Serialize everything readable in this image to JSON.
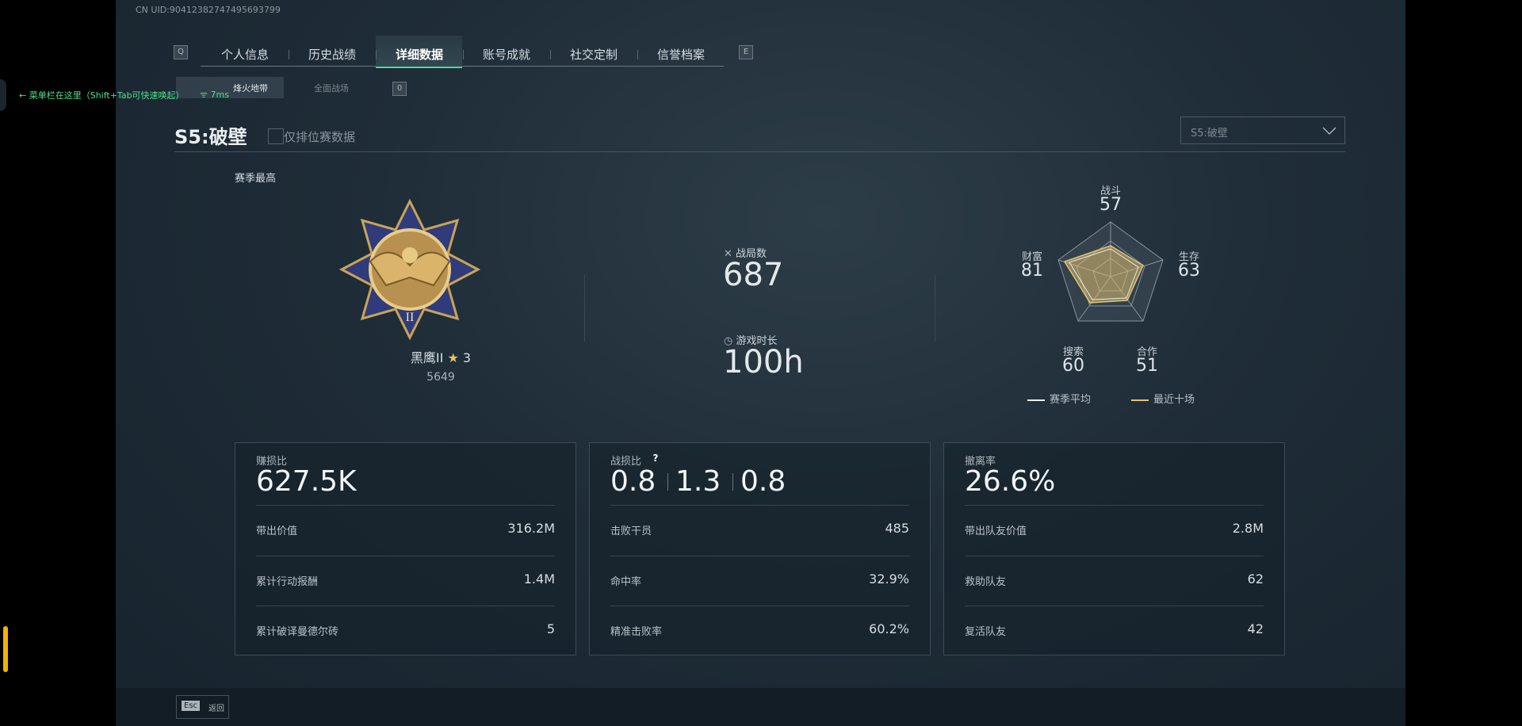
{
  "header": {
    "uid": "CN UID:90412382747495693799",
    "tabs": [
      "个人信息",
      "历史战绩",
      "详细数据",
      "账号成就",
      "社交定制",
      "信誉档案"
    ],
    "key_left": "Q",
    "key_right": "E",
    "subtabs": [
      "烽火地带",
      "全面战场"
    ],
    "sub_key": "0"
  },
  "overlay": {
    "hint": "菜单栏在这里（Shift+Tab可快速唤起）",
    "ping": "7ms"
  },
  "season": {
    "title": "S5:破壁",
    "ranked_only": "仅排位赛数据",
    "dropdown": "S5:破壁"
  },
  "rank": {
    "heading": "赛季最高",
    "name": "黑鹰II",
    "stars": 3,
    "score": 5649
  },
  "summary": {
    "matches_label": "战局数",
    "matches": 687,
    "time_label": "游戏时长",
    "time": "100h"
  },
  "radar": {
    "axes": [
      {
        "label": "战斗",
        "value": 57
      },
      {
        "label": "生存",
        "value": 63
      },
      {
        "label": "合作",
        "value": 51
      },
      {
        "label": "搜索",
        "value": 60
      },
      {
        "label": "财富",
        "value": 81
      }
    ],
    "legend": [
      "赛季平均",
      "最近十场"
    ]
  },
  "cards": [
    {
      "title": "赚损比",
      "value": "627.5K",
      "rows": [
        [
          "带出价值",
          "316.2M"
        ],
        [
          "累计行动报酬",
          "1.4M"
        ],
        [
          "累计破译曼德尔砖",
          "5"
        ]
      ]
    },
    {
      "title": "战损比",
      "help": "?",
      "values": [
        "0.8",
        "1.3",
        "0.8"
      ],
      "rows": [
        [
          "击败干员",
          "485"
        ],
        [
          "命中率",
          "32.9%"
        ],
        [
          "精准击败率",
          "60.2%"
        ]
      ]
    },
    {
      "title": "撤离率",
      "value": "26.6%",
      "rows": [
        [
          "带出队友价值",
          "2.8M"
        ],
        [
          "救助队友",
          "62"
        ],
        [
          "复活队友",
          "42"
        ]
      ]
    }
  ],
  "footer": {
    "key": "Esc",
    "label": "返回"
  }
}
